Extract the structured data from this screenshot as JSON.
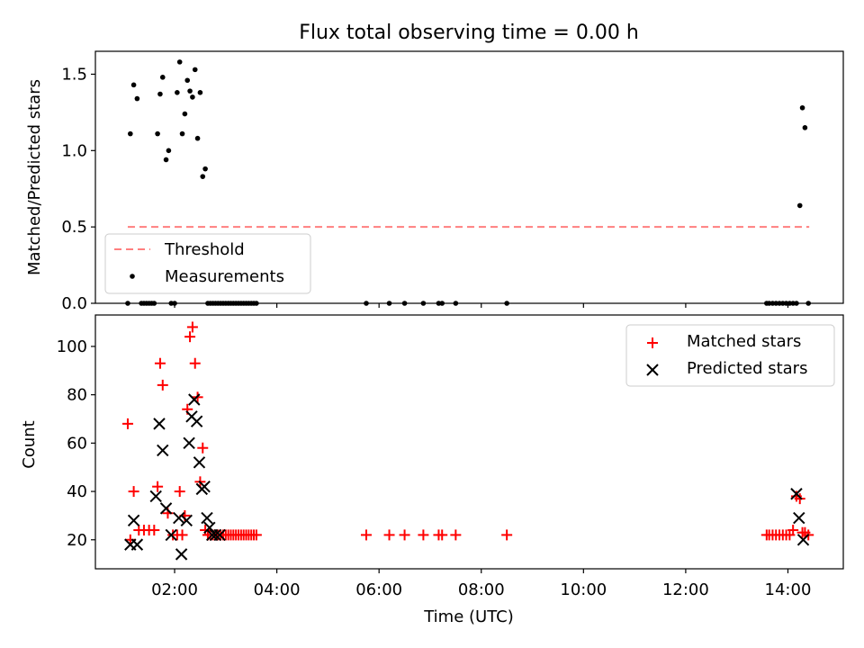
{
  "chart_data": [
    {
      "type": "scatter",
      "title": "Flux total observing time = 0.00 h",
      "xlabel": "",
      "ylabel": "Matched/Predicted stars",
      "xlim": [
        "00:27",
        "15:05"
      ],
      "ylim": [
        0,
        1.65
      ],
      "yticks": [
        0.0,
        0.5,
        1.0,
        1.5
      ],
      "ytick_labels": [
        "0.0",
        "0.5",
        "1.0",
        "1.5"
      ],
      "legend_loc": "lower left",
      "threshold": {
        "name": "Threshold",
        "color": "#ff7f7f",
        "style": "dashed",
        "y": 0.5,
        "x_start": "01:05",
        "x_end": "14:25"
      },
      "series": [
        {
          "name": "Measurements",
          "color": "#000000",
          "marker": "dot",
          "x": [
            "01:05",
            "01:08",
            "01:12",
            "01:16",
            "01:21",
            "01:24",
            "01:27",
            "01:30",
            "01:33",
            "01:36",
            "01:40",
            "01:43",
            "01:46",
            "01:50",
            "01:53",
            "01:56",
            "02:00",
            "02:03",
            "02:06",
            "02:09",
            "02:12",
            "02:15",
            "02:18",
            "02:21",
            "02:24",
            "02:27",
            "02:30",
            "02:33",
            "02:36",
            "02:39",
            "02:42",
            "02:45",
            "02:48",
            "02:51",
            "02:54",
            "02:57",
            "03:00",
            "03:03",
            "03:06",
            "03:09",
            "03:12",
            "03:15",
            "03:18",
            "03:21",
            "03:24",
            "03:27",
            "03:30",
            "03:33",
            "03:36",
            "05:45",
            "06:12",
            "06:30",
            "06:52",
            "07:10",
            "07:14",
            "07:30",
            "08:30",
            "13:35",
            "13:38",
            "13:42",
            "13:46",
            "13:50",
            "13:54",
            "13:58",
            "14:02",
            "14:06",
            "14:10",
            "14:14",
            "14:17",
            "14:20",
            "14:24"
          ],
          "y": [
            0.0,
            1.11,
            1.43,
            1.34,
            0.0,
            0.0,
            0.0,
            0.0,
            0.0,
            0.0,
            1.11,
            1.37,
            1.48,
            0.94,
            1.0,
            0.0,
            0.0,
            1.38,
            1.58,
            1.11,
            1.24,
            1.46,
            1.39,
            1.35,
            1.53,
            1.08,
            1.38,
            0.83,
            0.88,
            0.0,
            0.0,
            0.0,
            0.0,
            0.0,
            0.0,
            0.0,
            0.0,
            0.0,
            0.0,
            0.0,
            0.0,
            0.0,
            0.0,
            0.0,
            0.0,
            0.0,
            0.0,
            0.0,
            0.0,
            0.0,
            0.0,
            0.0,
            0.0,
            0.0,
            0.0,
            0.0,
            0.0,
            0.0,
            0.0,
            0.0,
            0.0,
            0.0,
            0.0,
            0.0,
            0.0,
            0.0,
            0.0,
            0.64,
            1.28,
            1.15,
            0.0
          ]
        }
      ]
    },
    {
      "type": "scatter",
      "title": "",
      "xlabel": "Time (UTC)",
      "ylabel": "Count",
      "xlim": [
        "00:27",
        "15:05"
      ],
      "ylim": [
        8,
        113
      ],
      "yticks": [
        20,
        40,
        60,
        80,
        100
      ],
      "ytick_labels": [
        "20",
        "40",
        "60",
        "80",
        "100"
      ],
      "xticks": [
        "02:00",
        "04:00",
        "06:00",
        "08:00",
        "10:00",
        "12:00",
        "14:00"
      ],
      "xtick_labels": [
        "02:00",
        "04:00",
        "06:00",
        "08:00",
        "10:00",
        "12:00",
        "14:00"
      ],
      "legend_loc": "upper right",
      "series": [
        {
          "name": "Matched stars",
          "color": "#ff0000",
          "marker": "plus",
          "x": [
            "01:05",
            "01:08",
            "01:12",
            "01:18",
            "01:24",
            "01:30",
            "01:36",
            "01:40",
            "01:43",
            "01:46",
            "01:52",
            "01:58",
            "02:03",
            "02:06",
            "02:09",
            "02:12",
            "02:15",
            "02:18",
            "02:21",
            "02:24",
            "02:27",
            "02:30",
            "02:33",
            "02:36",
            "02:39",
            "02:42",
            "02:45",
            "02:48",
            "02:51",
            "02:54",
            "02:57",
            "03:00",
            "03:03",
            "03:06",
            "03:09",
            "03:12",
            "03:15",
            "03:18",
            "03:21",
            "03:24",
            "03:27",
            "03:30",
            "03:33",
            "03:36",
            "05:45",
            "06:12",
            "06:30",
            "06:52",
            "07:10",
            "07:14",
            "07:30",
            "08:30",
            "13:35",
            "13:38",
            "13:42",
            "13:46",
            "13:50",
            "13:54",
            "13:58",
            "14:02",
            "14:06",
            "14:10",
            "14:14",
            "14:17",
            "14:20",
            "14:24"
          ],
          "y": [
            68,
            20,
            40,
            24,
            24,
            24,
            24,
            42,
            93,
            84,
            31,
            22,
            22,
            40,
            22,
            30,
            74,
            104,
            108,
            93,
            79,
            44,
            58,
            24,
            22,
            22,
            22,
            22,
            22,
            22,
            22,
            22,
            22,
            22,
            22,
            22,
            22,
            22,
            22,
            22,
            22,
            22,
            22,
            22,
            22,
            22,
            22,
            22,
            22,
            22,
            22,
            22,
            22,
            22,
            22,
            22,
            22,
            22,
            22,
            22,
            24,
            38,
            37,
            23,
            23,
            22
          ]
        },
        {
          "name": "Predicted stars",
          "color": "#000000",
          "marker": "x",
          "x": [
            "01:08",
            "01:12",
            "01:16",
            "01:38",
            "01:42",
            "01:46",
            "01:50",
            "01:56",
            "02:05",
            "02:08",
            "02:14",
            "02:17",
            "02:20",
            "02:23",
            "02:26",
            "02:29",
            "02:32",
            "02:35",
            "02:38",
            "02:41",
            "02:44",
            "02:48",
            "02:53",
            "14:10",
            "14:13",
            "14:18"
          ],
          "y": [
            18,
            28,
            18,
            38,
            68,
            57,
            33,
            22,
            29,
            14,
            28,
            60,
            71,
            78,
            69,
            52,
            41,
            42,
            29,
            25,
            22,
            22,
            22,
            39,
            29,
            20
          ]
        }
      ]
    }
  ]
}
